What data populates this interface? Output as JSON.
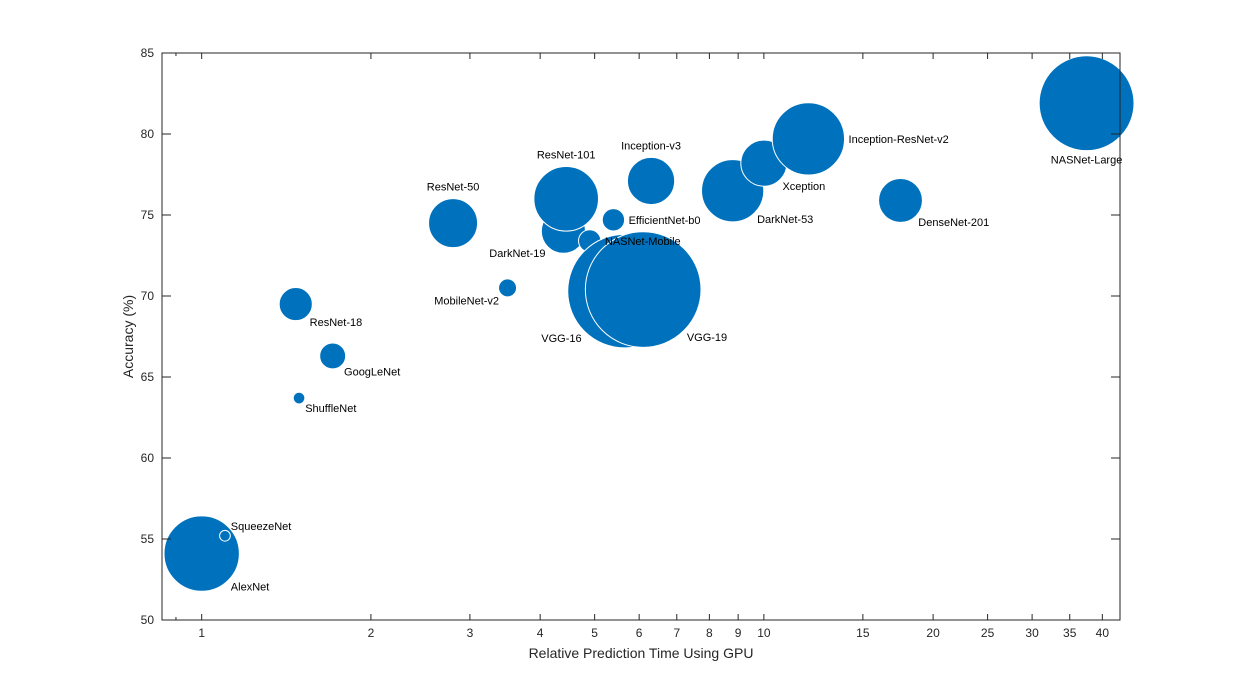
{
  "chart_data": {
    "type": "scatter",
    "title": "",
    "xlabel": "Relative Prediction Time Using GPU",
    "ylabel": "Accuracy (%)",
    "x_scale": "log",
    "xlim": [
      0.85,
      43
    ],
    "ylim": [
      50,
      85
    ],
    "x_ticks": [
      1,
      2,
      3,
      4,
      5,
      6,
      7,
      8,
      9,
      10,
      15,
      20,
      25,
      30,
      35,
      40
    ],
    "y_ticks": [
      50,
      55,
      60,
      65,
      70,
      75,
      80,
      85
    ],
    "grid": false,
    "legend": "none",
    "marker_color": "#0072bd",
    "marker_size_meaning": "Parameter memory",
    "points": [
      {
        "name": "AlexNet",
        "x": 1.0,
        "y": 54.1,
        "memory_mb": 227,
        "label_pos": "lower-right"
      },
      {
        "name": "SqueezeNet",
        "x": 1.1,
        "y": 55.2,
        "memory_mb": 4.6,
        "label_pos": "upper-right"
      },
      {
        "name": "ShuffleNet",
        "x": 1.49,
        "y": 63.7,
        "memory_mb": 5.4,
        "label_pos": "lower-right"
      },
      {
        "name": "ResNet-18",
        "x": 1.47,
        "y": 69.5,
        "memory_mb": 44,
        "label_pos": "lower-right"
      },
      {
        "name": "GoogLeNet",
        "x": 1.71,
        "y": 66.3,
        "memory_mb": 27,
        "label_pos": "lower-right"
      },
      {
        "name": "ResNet-50",
        "x": 2.8,
        "y": 74.5,
        "memory_mb": 96,
        "label_pos": "top"
      },
      {
        "name": "MobileNet-v2",
        "x": 3.5,
        "y": 70.5,
        "memory_mb": 13,
        "label_pos": "lower-left"
      },
      {
        "name": "DarkNet-19",
        "x": 4.4,
        "y": 74.0,
        "memory_mb": 78,
        "label_pos": "lower-left"
      },
      {
        "name": "ResNet-101",
        "x": 4.45,
        "y": 76.0,
        "memory_mb": 167,
        "label_pos": "top"
      },
      {
        "name": "NASNet-Mobile",
        "x": 4.9,
        "y": 73.4,
        "memory_mb": 20,
        "label_pos": "right"
      },
      {
        "name": "EfficientNet-b0",
        "x": 5.4,
        "y": 74.7,
        "memory_mb": 20,
        "label_pos": "right"
      },
      {
        "name": "VGG-16",
        "x": 5.65,
        "y": 70.3,
        "memory_mb": 515,
        "label_pos": "lower-left"
      },
      {
        "name": "VGG-19",
        "x": 6.1,
        "y": 70.4,
        "memory_mb": 535,
        "label_pos": "lower-right"
      },
      {
        "name": "Inception-v3",
        "x": 6.3,
        "y": 77.1,
        "memory_mb": 89,
        "label_pos": "top"
      },
      {
        "name": "DarkNet-53",
        "x": 8.8,
        "y": 76.5,
        "memory_mb": 155,
        "label_pos": "lower-right"
      },
      {
        "name": "Xception",
        "x": 10.0,
        "y": 78.2,
        "memory_mb": 85,
        "label_pos": "lower-right"
      },
      {
        "name": "Inception-ResNet-v2",
        "x": 12.0,
        "y": 79.7,
        "memory_mb": 209,
        "label_pos": "right"
      },
      {
        "name": "DenseNet-201",
        "x": 17.5,
        "y": 75.9,
        "memory_mb": 77,
        "label_pos": "lower-right"
      },
      {
        "name": "NASNet-Large",
        "x": 37.5,
        "y": 81.9,
        "memory_mb": 360,
        "label_pos": "bottom"
      }
    ]
  }
}
